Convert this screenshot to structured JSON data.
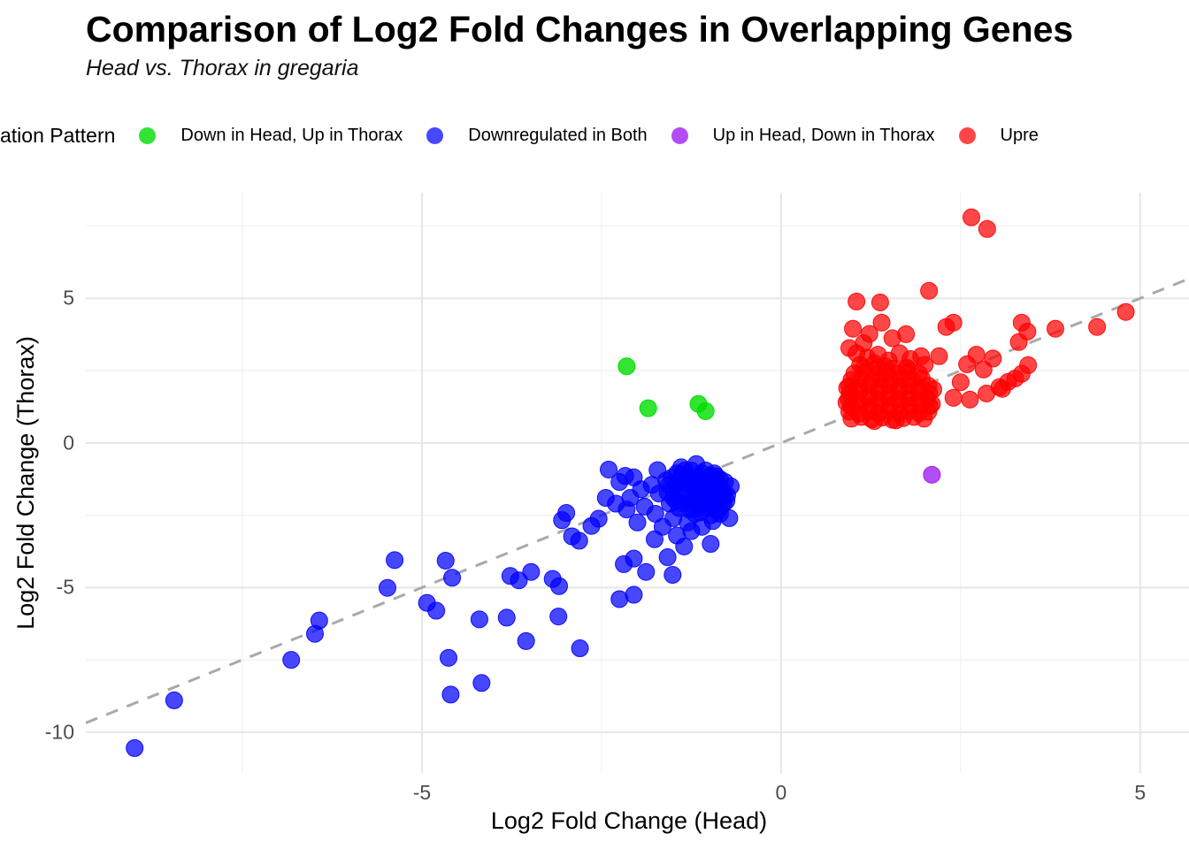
{
  "header": {
    "title": "Comparison of Log2 Fold Changes in Overlapping Genes",
    "subtitle": "Head vs. Thorax in gregaria"
  },
  "legend": {
    "title": "ation Pattern",
    "items": [
      {
        "label": "Down in Head, Up in Thorax",
        "color": "#00DD00",
        "alpha": 0.8
      },
      {
        "label": "Downregulated in Both",
        "color": "#0000FF",
        "alpha": 0.72
      },
      {
        "label": "Up in Head, Down in Thorax",
        "color": "#A020F0",
        "alpha": 0.8
      },
      {
        "label": "Upre",
        "color": "#FF0000",
        "alpha": 0.72
      }
    ]
  },
  "axes": {
    "x_title": "Log2 Fold Change (Head)",
    "y_title": "Log2 Fold Change (Thorax)"
  },
  "chart_data": {
    "type": "scatter",
    "title": "Comparison of Log2 Fold Changes in Overlapping Genes",
    "subtitle": "Head vs. Thorax in gregaria",
    "xlabel": "Log2 Fold Change (Head)",
    "ylabel": "Log2 Fold Change (Thorax)",
    "xlim": [
      -9.68,
      5.68
    ],
    "ylim": [
      -11.41,
      8.65
    ],
    "x_ticks": [
      -5,
      0,
      5
    ],
    "x_tick_labels": [
      "-5",
      "0",
      "5"
    ],
    "y_ticks": [
      5,
      0,
      -5,
      -10
    ],
    "y_tick_labels": [
      "5",
      "0",
      "-5",
      "-10"
    ],
    "x_minor_ticks": [
      -7.5,
      -2.5,
      2.5
    ],
    "y_minor_ticks": [
      7.5,
      2.5,
      -2.5,
      -7.5
    ],
    "grid": true,
    "legend_position": "top",
    "grid_major_color": "#E6E6E6",
    "grid_minor_color": "#F1F1F1",
    "point_radius": 9.5,
    "reference_line": {
      "slope": 1,
      "intercept": 0,
      "style": "dashed",
      "color": "#A9A9A9",
      "width": 3
    },
    "series": [
      {
        "name": "Down in Head, Up in Thorax",
        "color": "#00DD00",
        "alpha": 0.8,
        "points": [
          [
            -2.15,
            2.65
          ],
          [
            -1.85,
            1.2
          ],
          [
            -1.15,
            1.35
          ],
          [
            -1.05,
            1.1
          ]
        ]
      },
      {
        "name": "Downregulated in Both",
        "color": "#0000FF",
        "alpha": 0.72,
        "points": [
          [
            -9.0,
            -10.55
          ],
          [
            -8.45,
            -8.9
          ],
          [
            -6.82,
            -7.5
          ],
          [
            -6.49,
            -6.6
          ],
          [
            -6.43,
            -6.14
          ],
          [
            -5.48,
            -5.01
          ],
          [
            -5.38,
            -4.05
          ],
          [
            -4.93,
            -5.53
          ],
          [
            -4.8,
            -5.8
          ],
          [
            -4.67,
            -4.07
          ],
          [
            -4.58,
            -4.66
          ],
          [
            -4.63,
            -7.43
          ],
          [
            -4.17,
            -8.3
          ],
          [
            -4.6,
            -8.7
          ],
          [
            -4.2,
            -6.1
          ],
          [
            -3.77,
            -4.6
          ],
          [
            -3.65,
            -4.75
          ],
          [
            -3.48,
            -4.46
          ],
          [
            -3.18,
            -4.7
          ],
          [
            -3.09,
            -4.95
          ],
          [
            -3.82,
            -6.04
          ],
          [
            -3.55,
            -6.85
          ],
          [
            -3.1,
            -6.0
          ],
          [
            -2.8,
            -7.1
          ],
          [
            -2.05,
            -5.25
          ],
          [
            -2.25,
            -5.4
          ],
          [
            -2.99,
            -2.42
          ],
          [
            -3.05,
            -2.67
          ],
          [
            -2.91,
            -3.23
          ],
          [
            -2.81,
            -3.38
          ],
          [
            -2.44,
            -1.9
          ],
          [
            -2.54,
            -2.62
          ],
          [
            -2.64,
            -2.87
          ],
          [
            -2.4,
            -0.92
          ],
          [
            -2.17,
            -1.14
          ],
          [
            -2.05,
            -1.19
          ],
          [
            -2.25,
            -1.35
          ],
          [
            -1.72,
            -0.94
          ],
          [
            -1.39,
            -0.84
          ],
          [
            -1.18,
            -0.73
          ],
          [
            -1.76,
            -3.33
          ],
          [
            -1.58,
            -3.95
          ],
          [
            -2.05,
            -4.0
          ],
          [
            -1.88,
            -4.46
          ],
          [
            -2.19,
            -4.19
          ],
          [
            -1.35,
            -3.58
          ],
          [
            -0.98,
            -3.49
          ],
          [
            -1.51,
            -4.56
          ],
          [
            -1.95,
            -1.6
          ],
          [
            -1.8,
            -1.45
          ],
          [
            -1.7,
            -1.75
          ],
          [
            -1.6,
            -1.3
          ],
          [
            -1.55,
            -2.1
          ],
          [
            -1.45,
            -1.05
          ],
          [
            -1.9,
            -2.2
          ],
          [
            -1.75,
            -2.45
          ],
          [
            -1.5,
            -2.6
          ],
          [
            -1.3,
            -2.75
          ],
          [
            -1.1,
            -2.9
          ],
          [
            -0.95,
            -2.7
          ],
          [
            -0.85,
            -2.45
          ],
          [
            -0.8,
            -2.1
          ],
          [
            -0.75,
            -1.8
          ],
          [
            -0.9,
            -1.15
          ],
          [
            -1.05,
            -0.95
          ],
          [
            -2.1,
            -1.9
          ],
          [
            -2.15,
            -2.3
          ],
          [
            -1.25,
            -3.05
          ],
          [
            -1.45,
            -3.2
          ],
          [
            -1.65,
            -2.9
          ],
          [
            -0.7,
            -1.5
          ],
          [
            -0.72,
            -2.6
          ],
          [
            -1.15,
            -1.5
          ],
          [
            -2.3,
            -2.1
          ],
          [
            -2.0,
            -2.75
          ],
          [
            -1.52,
            -1.2
          ],
          [
            -1.48,
            -1.55
          ],
          [
            -1.5,
            -1.9
          ],
          [
            -1.42,
            -2.25
          ],
          [
            -1.38,
            -1.1
          ],
          [
            -1.35,
            -1.4
          ],
          [
            -1.32,
            -1.7
          ],
          [
            -1.3,
            -2.0
          ],
          [
            -1.28,
            -2.3
          ],
          [
            -1.25,
            -0.95
          ],
          [
            -1.22,
            -1.25
          ],
          [
            -1.2,
            -1.55
          ],
          [
            -1.18,
            -1.85
          ],
          [
            -1.15,
            -2.15
          ],
          [
            -1.12,
            -2.4
          ],
          [
            -1.1,
            -1.05
          ],
          [
            -1.08,
            -1.35
          ],
          [
            -1.05,
            -1.65
          ],
          [
            -1.02,
            -1.95
          ],
          [
            -1.0,
            -2.25
          ],
          [
            -0.98,
            -1.15
          ],
          [
            -0.95,
            -1.45
          ],
          [
            -0.92,
            -1.75
          ],
          [
            -0.9,
            -2.05
          ],
          [
            -0.88,
            -2.35
          ],
          [
            -0.85,
            -1.25
          ],
          [
            -0.83,
            -1.6
          ],
          [
            -0.82,
            -1.9
          ],
          [
            -1.44,
            -1.75
          ],
          [
            -1.36,
            -2.1
          ],
          [
            -1.24,
            -2.0
          ],
          [
            -1.16,
            -1.2
          ],
          [
            -1.06,
            -2.1
          ],
          [
            -0.96,
            -1.9
          ],
          [
            -0.87,
            -1.5
          ],
          [
            -1.3,
            -1.15
          ],
          [
            -1.1,
            -1.75
          ],
          [
            -0.93,
            -1.05
          ],
          [
            -1.4,
            -1.3
          ],
          [
            -1.2,
            -2.45
          ],
          [
            -1.0,
            -1.55
          ],
          [
            -0.8,
            -1.75
          ],
          [
            -1.26,
            -1.45
          ],
          [
            -1.46,
            -2.0
          ],
          [
            -1.34,
            -0.95
          ],
          [
            -1.14,
            -1.45
          ],
          [
            -1.04,
            -1.25
          ],
          [
            -0.94,
            -2.2
          ],
          [
            -0.84,
            -2.2
          ],
          [
            -1.18,
            -2.28
          ],
          [
            -0.78,
            -1.35
          ],
          [
            -0.76,
            -2.0
          ],
          [
            -1.56,
            -1.45
          ],
          [
            -1.58,
            -1.7
          ],
          [
            -0.98,
            -2.5
          ]
        ]
      },
      {
        "name": "Up in Head, Down in Thorax",
        "color": "#A020F0",
        "alpha": 0.8,
        "points": [
          [
            2.1,
            -1.1
          ]
        ]
      },
      {
        "name": "Upre",
        "color": "#FF0000",
        "alpha": 0.72,
        "points": [
          [
            2.65,
            7.8
          ],
          [
            2.87,
            7.4
          ],
          [
            2.06,
            5.26
          ],
          [
            1.05,
            4.89
          ],
          [
            1.38,
            4.86
          ],
          [
            1.0,
            3.95
          ],
          [
            1.23,
            3.77
          ],
          [
            1.4,
            4.16
          ],
          [
            1.74,
            3.76
          ],
          [
            2.3,
            4.01
          ],
          [
            2.4,
            4.16
          ],
          [
            1.55,
            3.62
          ],
          [
            1.15,
            3.45
          ],
          [
            0.95,
            3.28
          ],
          [
            3.35,
            4.16
          ],
          [
            3.43,
            3.85
          ],
          [
            3.31,
            3.49
          ],
          [
            3.82,
            3.95
          ],
          [
            4.4,
            4.01
          ],
          [
            4.8,
            4.53
          ],
          [
            3.44,
            2.69
          ],
          [
            3.35,
            2.39
          ],
          [
            3.26,
            2.23
          ],
          [
            3.08,
            1.87
          ],
          [
            3.04,
            1.93
          ],
          [
            3.16,
            2.11
          ],
          [
            2.82,
            2.54
          ],
          [
            2.59,
            2.72
          ],
          [
            2.86,
            1.71
          ],
          [
            2.63,
            1.5
          ],
          [
            2.4,
            1.56
          ],
          [
            2.72,
            3.05
          ],
          [
            2.95,
            2.92
          ],
          [
            2.2,
            3.0
          ],
          [
            2.5,
            2.1
          ],
          [
            1.05,
            3.1
          ],
          [
            1.2,
            2.95
          ],
          [
            1.35,
            3.05
          ],
          [
            1.5,
            2.85
          ],
          [
            1.65,
            3.1
          ],
          [
            1.8,
            2.9
          ],
          [
            1.95,
            3.0
          ],
          [
            1.1,
            2.7
          ],
          [
            1.45,
            2.65
          ],
          [
            1.75,
            2.6
          ],
          [
            2.0,
            2.7
          ],
          [
            1.3,
            2.75
          ],
          [
            0.98,
            0.84
          ],
          [
            1.12,
            0.9
          ],
          [
            1.26,
            0.82
          ],
          [
            1.41,
            0.88
          ],
          [
            1.55,
            0.8
          ],
          [
            1.7,
            0.86
          ],
          [
            1.85,
            0.9
          ],
          [
            1.99,
            0.84
          ],
          [
            0.95,
            1.08
          ],
          [
            1.08,
            1.02
          ],
          [
            1.22,
            1.1
          ],
          [
            1.36,
            1.04
          ],
          [
            1.5,
            1.12
          ],
          [
            1.64,
            1.05
          ],
          [
            1.78,
            1.1
          ],
          [
            1.92,
            1.03
          ],
          [
            2.05,
            1.08
          ],
          [
            0.97,
            1.28
          ],
          [
            1.1,
            1.33
          ],
          [
            1.24,
            1.26
          ],
          [
            1.38,
            1.32
          ],
          [
            1.52,
            1.27
          ],
          [
            1.66,
            1.34
          ],
          [
            1.8,
            1.28
          ],
          [
            1.94,
            1.33
          ],
          [
            2.07,
            1.27
          ],
          [
            0.94,
            1.52
          ],
          [
            1.07,
            1.47
          ],
          [
            1.21,
            1.55
          ],
          [
            1.35,
            1.49
          ],
          [
            1.49,
            1.56
          ],
          [
            1.63,
            1.5
          ],
          [
            1.77,
            1.54
          ],
          [
            1.91,
            1.48
          ],
          [
            2.04,
            1.53
          ],
          [
            0.96,
            1.73
          ],
          [
            1.09,
            1.78
          ],
          [
            1.23,
            1.71
          ],
          [
            1.37,
            1.77
          ],
          [
            1.51,
            1.72
          ],
          [
            1.65,
            1.79
          ],
          [
            1.79,
            1.73
          ],
          [
            1.93,
            1.78
          ],
          [
            2.06,
            1.72
          ],
          [
            0.95,
            1.97
          ],
          [
            1.08,
            1.92
          ],
          [
            1.22,
            2.0
          ],
          [
            1.36,
            1.94
          ],
          [
            1.5,
            2.01
          ],
          [
            1.64,
            1.95
          ],
          [
            1.78,
            1.99
          ],
          [
            1.92,
            1.93
          ],
          [
            2.05,
            1.98
          ],
          [
            0.98,
            2.18
          ],
          [
            1.12,
            2.23
          ],
          [
            1.26,
            2.16
          ],
          [
            1.4,
            2.22
          ],
          [
            1.54,
            2.17
          ],
          [
            1.68,
            2.24
          ],
          [
            1.82,
            2.18
          ],
          [
            1.96,
            2.22
          ],
          [
            1.02,
            2.4
          ],
          [
            1.17,
            2.45
          ],
          [
            1.32,
            2.38
          ],
          [
            1.47,
            2.44
          ],
          [
            1.62,
            2.39
          ],
          [
            1.77,
            2.45
          ],
          [
            1.92,
            2.4
          ],
          [
            1.15,
            2.58
          ],
          [
            1.35,
            2.62
          ],
          [
            1.55,
            2.57
          ],
          [
            1.75,
            2.6
          ],
          [
            0.91,
            1.4
          ],
          [
            0.92,
            1.9
          ],
          [
            2.1,
            1.35
          ],
          [
            2.12,
            1.85
          ],
          [
            1.6,
            0.78
          ],
          [
            1.3,
            0.76
          ]
        ]
      }
    ]
  }
}
